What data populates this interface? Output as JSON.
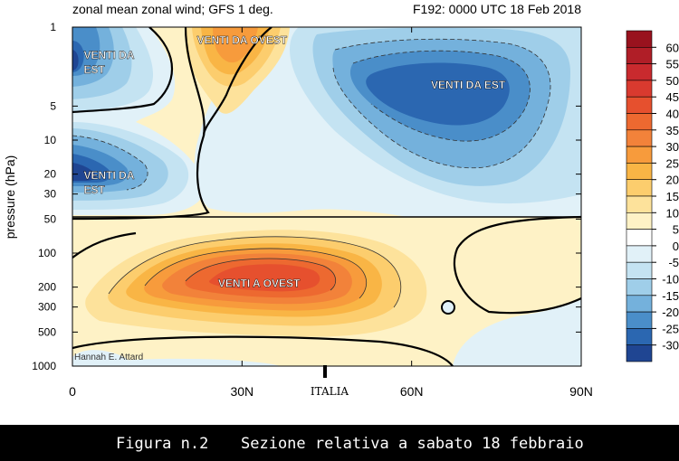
{
  "chart_data": {
    "type": "contour",
    "title": "zonal mean zonal wind; GFS 1 deg.",
    "subtitle": "F192: 0000 UTC 18 Feb 2018",
    "xlabel": "",
    "ylabel": "pressure (hPa)",
    "x_ticks": [
      "0",
      "30N",
      "60N",
      "90N"
    ],
    "x_tick_values": [
      0,
      30,
      60,
      90
    ],
    "y_ticks": [
      "1",
      "5",
      "10",
      "20",
      "30",
      "50",
      "100",
      "200",
      "300",
      "500",
      "1000"
    ],
    "y_tick_values": [
      1,
      5,
      10,
      20,
      30,
      50,
      100,
      200,
      300,
      500,
      1000
    ],
    "xlim": [
      0,
      90
    ],
    "ylim": [
      1000,
      1
    ],
    "y_scale": "log",
    "colorbar": {
      "levels": [
        "60",
        "55",
        "50",
        "45",
        "40",
        "35",
        "30",
        "25",
        "20",
        "15",
        "10",
        "5",
        "0",
        "-5",
        "-10",
        "-15",
        "-20",
        "-25",
        "-30"
      ],
      "colors": [
        "#99121e",
        "#b01e27",
        "#c92a2e",
        "#d93a2f",
        "#e6502e",
        "#ed6930",
        "#f2823a",
        "#f79b3c",
        "#f9b545",
        "#fccd6d",
        "#fde29b",
        "#fef2c6",
        "#ffffff",
        "#e1f1f8",
        "#c4e3f2",
        "#9fcee9",
        "#74b1dc",
        "#4a8ec9",
        "#2b67b1",
        "#1f4592"
      ]
    },
    "annotations": [
      {
        "text": "VENTI DA OVEST",
        "x": 30,
        "p": 1.4
      },
      {
        "text": "VENTI DA EST",
        "x": 2,
        "p": 1.9,
        "lines": [
          "VENTI DA",
          "EST"
        ]
      },
      {
        "text": "VENTI DA EST",
        "x": 70,
        "p": 3.5
      },
      {
        "text": "VENTI DA EST",
        "x": 2,
        "p": 22,
        "lines": [
          "VENTI DA",
          "EST"
        ]
      },
      {
        "text": "VENTI A OVEST",
        "x": 33,
        "p": 200
      }
    ],
    "marker_label": "ITALIA",
    "marker_x": 45,
    "author": "Hannah E. Attard"
  },
  "caption": {
    "figure_label": "Figura n.2",
    "text": "Sezione relativa a sabato 18 febbraio"
  }
}
